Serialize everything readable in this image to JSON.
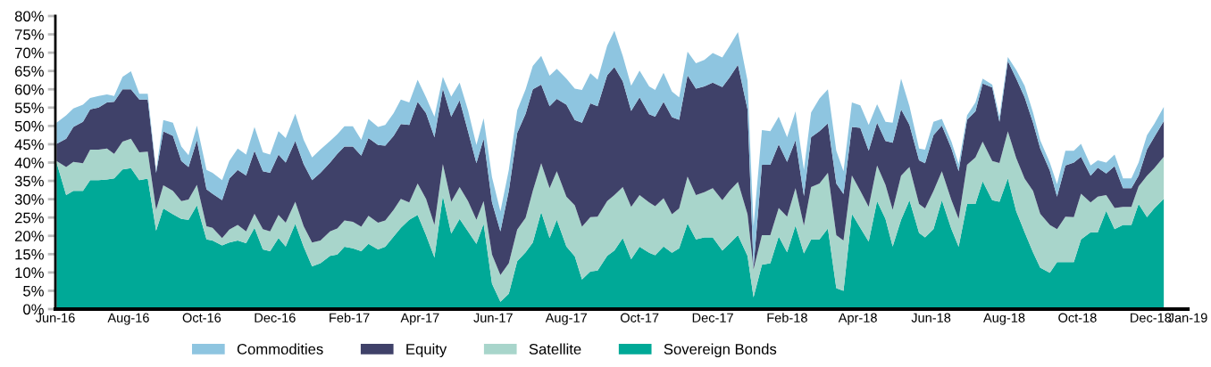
{
  "chart_data": {
    "type": "area",
    "stacked": true,
    "x": [
      "2016-06-02",
      "2016-06-10",
      "2016-06-16",
      "2016-06-24",
      "2016-06-30",
      "2016-07-07",
      "2016-07-14",
      "2016-07-20",
      "2016-07-27",
      "2016-08-03",
      "2016-08-10",
      "2016-08-17",
      "2016-08-24",
      "2016-08-30",
      "2016-09-07",
      "2016-09-14",
      "2016-09-20",
      "2016-09-27",
      "2016-10-05",
      "2016-10-10",
      "2016-10-18",
      "2016-10-24",
      "2016-10-31",
      "2016-11-07",
      "2016-11-14",
      "2016-11-21",
      "2016-11-27",
      "2016-12-04",
      "2016-12-10",
      "2016-12-18",
      "2016-12-25",
      "2017-01-01",
      "2017-01-08",
      "2017-01-16",
      "2017-01-22",
      "2017-01-28",
      "2017-02-04",
      "2017-02-11",
      "2017-02-17",
      "2017-02-25",
      "2017-03-03",
      "2017-03-10",
      "2017-03-16",
      "2017-03-23",
      "2017-03-30",
      "2017-04-06",
      "2017-04-13",
      "2017-04-20",
      "2017-04-27",
      "2017-05-04",
      "2017-05-11",
      "2017-05-18",
      "2017-05-24",
      "2017-05-31",
      "2017-06-07",
      "2017-06-14",
      "2017-06-21",
      "2017-06-28",
      "2017-07-04",
      "2017-07-11",
      "2017-07-18",
      "2017-07-24",
      "2017-08-01",
      "2017-08-08",
      "2017-08-14",
      "2017-08-21",
      "2017-08-27",
      "2017-09-04",
      "2017-09-10",
      "2017-09-17",
      "2017-09-24",
      "2017-10-01",
      "2017-10-09",
      "2017-10-14",
      "2017-10-21",
      "2017-10-28",
      "2017-11-03",
      "2017-11-10",
      "2017-11-17",
      "2017-11-24",
      "2017-12-01",
      "2017-12-09",
      "2017-12-15",
      "2017-12-22",
      "2017-12-30",
      "2018-01-04",
      "2018-01-11",
      "2018-01-18",
      "2018-01-25",
      "2018-02-01",
      "2018-02-08",
      "2018-02-15",
      "2018-02-21",
      "2018-02-28",
      "2018-03-07",
      "2018-03-14",
      "2018-03-20",
      "2018-03-27",
      "2018-04-03",
      "2018-04-10",
      "2018-04-17",
      "2018-04-24",
      "2018-04-30",
      "2018-05-07",
      "2018-05-14",
      "2018-05-22",
      "2018-05-27",
      "2018-06-03",
      "2018-06-10",
      "2018-06-18",
      "2018-06-24",
      "2018-07-01",
      "2018-07-08",
      "2018-07-14",
      "2018-07-22",
      "2018-07-28",
      "2018-08-04",
      "2018-08-11",
      "2018-08-18",
      "2018-08-25",
      "2018-08-31",
      "2018-09-08",
      "2018-09-14",
      "2018-09-21",
      "2018-09-28",
      "2018-10-04",
      "2018-10-12",
      "2018-10-18",
      "2018-10-25",
      "2018-11-01",
      "2018-11-08",
      "2018-11-15",
      "2018-11-21",
      "2018-11-28",
      "2018-12-04",
      "2018-12-12"
    ],
    "series": [
      {
        "name": "Sovereign Bonds",
        "color": "#00a997",
        "values": [
          40.0,
          31.1,
          32.3,
          32.3,
          35.2,
          35.2,
          35.4,
          35.7,
          38.1,
          38.5,
          35.2,
          35.6,
          21.4,
          27.5,
          25.9,
          24.6,
          24.4,
          28.3,
          19.0,
          18.7,
          17.4,
          18.2,
          18.7,
          18.0,
          22.2,
          16.3,
          15.8,
          19.4,
          17.1,
          23.3,
          17.0,
          11.7,
          12.5,
          14.5,
          14.9,
          17.0,
          16.6,
          15.8,
          17.8,
          16.3,
          17.0,
          19.8,
          22.2,
          24.4,
          25.7,
          20.2,
          14.1,
          30.9,
          20.6,
          24.6,
          21.2,
          17.8,
          23.3,
          6.9,
          2.0,
          4.2,
          13.1,
          15.5,
          18.2,
          26.5,
          19.4,
          24.4,
          17.1,
          14.4,
          8.1,
          10.3,
          10.5,
          14.5,
          16.0,
          19.4,
          13.6,
          17.0,
          15.4,
          14.7,
          17.1,
          15.4,
          16.6,
          23.4,
          19.0,
          19.6,
          19.6,
          16.0,
          17.9,
          20.2,
          14.5,
          3.2,
          12.1,
          12.5,
          19.8,
          15.5,
          22.8,
          15.2,
          19.0,
          19.0,
          22.0,
          5.7,
          5.0,
          26.0,
          22.2,
          18.4,
          29.5,
          24.6,
          17.1,
          24.4,
          29.7,
          20.8,
          19.6,
          21.8,
          29.7,
          21.8,
          17.0,
          28.7,
          28.7,
          34.9,
          29.7,
          29.3,
          35.7,
          26.7,
          21.0,
          15.5,
          11.3,
          9.9,
          12.8,
          12.8,
          12.8,
          19.0,
          21.0,
          21.0,
          26.8,
          21.8,
          23.0,
          23.0,
          28.7,
          25.1,
          27.5,
          30.1
        ]
      },
      {
        "name": "Satellite",
        "color": "#a8d5cb",
        "values": [
          0.4,
          7.7,
          7.9,
          7.5,
          8.3,
          8.3,
          8.4,
          6.7,
          7.6,
          8.0,
          7.6,
          7.4,
          5.7,
          6.3,
          6.4,
          4.9,
          5.5,
          5.6,
          3.6,
          3.5,
          2.0,
          3.5,
          4.3,
          3.2,
          3.8,
          5.5,
          5.4,
          6.3,
          6.5,
          6.0,
          5.6,
          6.5,
          6.2,
          6.7,
          7.1,
          7.2,
          7.2,
          6.7,
          7.7,
          7.3,
          7.2,
          7.3,
          7.9,
          4.7,
          8.6,
          9.9,
          8.9,
          8.7,
          8.7,
          8.7,
          8.3,
          6.6,
          6.2,
          8.0,
          7.3,
          8.3,
          8.6,
          9.4,
          14.1,
          13.3,
          13.6,
          13.2,
          13.6,
          13.9,
          14.4,
          14.8,
          14.7,
          15.0,
          15.1,
          13.9,
          14.3,
          14.1,
          13.7,
          13.4,
          13.2,
          10.5,
          10.9,
          12.8,
          12.1,
          12.3,
          13.4,
          13.7,
          14.4,
          14.5,
          11.4,
          7.7,
          8.1,
          7.7,
          7.8,
          9.7,
          10.2,
          7.6,
          14.3,
          15.3,
          15.2,
          14.5,
          13.7,
          10.5,
          10.1,
          9.5,
          9.7,
          9.3,
          10.0,
          12.0,
          9.1,
          7.9,
          7.9,
          10.4,
          7.9,
          7.9,
          7.6,
          10.7,
          12.7,
          10.8,
          10.7,
          10.6,
          12.8,
          14.5,
          14.6,
          16.8,
          14.7,
          13.1,
          9.0,
          12.4,
          12.3,
          12.5,
          8.1,
          9.7,
          4.3,
          5.8,
          4.9,
          4.9,
          4.8,
          11.3,
          10.9,
          11.5
        ]
      },
      {
        "name": "Equity",
        "color": "#3f4169",
        "values": [
          4.7,
          7.7,
          9.5,
          11.3,
          11.0,
          11.5,
          12.6,
          14.2,
          14.3,
          13.5,
          14.4,
          14.2,
          10.1,
          14.7,
          15.0,
          10.9,
          8.9,
          12.2,
          10.1,
          9.3,
          10.3,
          13.9,
          15.0,
          15.3,
          17.2,
          15.8,
          16.0,
          16.5,
          16.4,
          16.6,
          17.0,
          17.0,
          18.5,
          18.8,
          20.4,
          20.2,
          20.6,
          19.4,
          21.2,
          21.2,
          20.4,
          20.2,
          20.4,
          21.2,
          22.3,
          23.4,
          23.9,
          20.6,
          23.2,
          23.7,
          19.0,
          15.4,
          17.0,
          14.2,
          11.9,
          19.8,
          26.4,
          28.4,
          27.7,
          21.5,
          22.4,
          19.8,
          25.1,
          23.3,
          28.4,
          31.1,
          30.2,
          34.3,
          35.0,
          28.9,
          26.2,
          26.7,
          24.1,
          24.4,
          26.3,
          26.5,
          24.2,
          27.6,
          29.1,
          28.9,
          28.8,
          30.9,
          30.9,
          32.0,
          28.6,
          0.4,
          19.2,
          19.2,
          17.4,
          15.0,
          13.1,
          8.1,
          13.6,
          14.3,
          13.5,
          14.1,
          12.7,
          13.2,
          17.2,
          15.3,
          11.7,
          12.0,
          18.3,
          18.1,
          11.5,
          11.9,
          12.3,
          15.3,
          12.5,
          14.1,
          13.0,
          12.3,
          12.6,
          15.9,
          20.1,
          11.2,
          19.2,
          21.7,
          22.2,
          18.6,
          17.8,
          14.8,
          8.9,
          14.0,
          14.9,
          10.1,
          7.3,
          7.9,
          5.9,
          11.4,
          5.1,
          5.1,
          2.9,
          7.2,
          8.5,
          9.7
        ]
      },
      {
        "name": "Commodities",
        "color": "#8ec5e0",
        "values": [
          5.8,
          6.4,
          5.1,
          4.7,
          3.1,
          3.2,
          2.2,
          1.6,
          3.4,
          4.9,
          1.6,
          1.6,
          0.6,
          3.1,
          3.6,
          4.0,
          3.2,
          4.0,
          5.3,
          5.7,
          5.5,
          4.8,
          5.8,
          5.7,
          6.5,
          5.2,
          5.0,
          6.4,
          6.7,
          7.4,
          6.6,
          6.2,
          6.4,
          5.9,
          5.3,
          5.5,
          5.5,
          4.3,
          5.2,
          4.9,
          5.7,
          6.2,
          6.7,
          6.1,
          6.0,
          4.3,
          5.6,
          3.2,
          5.5,
          4.8,
          5.8,
          5.0,
          5.6,
          6.9,
          5.5,
          5.7,
          6.2,
          6.7,
          6.4,
          7.8,
          8.3,
          8.2,
          7.1,
          8.6,
          8.9,
          8.2,
          7.2,
          8.1,
          9.9,
          6.9,
          6.9,
          7.3,
          7.6,
          7.3,
          7.9,
          7.0,
          6.1,
          6.5,
          6.9,
          7.2,
          8.1,
          8.1,
          8.6,
          8.9,
          7.9,
          11.3,
          9.5,
          9.2,
          7.5,
          6.7,
          7.9,
          7.1,
          6.8,
          8.9,
          9.3,
          8.9,
          6.2,
          6.7,
          6.1,
          7.1,
          5.0,
          5.2,
          5.5,
          8.4,
          5.1,
          3.2,
          3.7,
          3.6,
          1.8,
          1.9,
          2.0,
          1.2,
          2.4,
          1.3,
          0.8,
          1.4,
          1.1,
          2.4,
          3.2,
          2.8,
          2.3,
          2.2,
          3.4,
          4.0,
          3.2,
          3.5,
          2.8,
          2.0,
          3.0,
          3.2,
          2.7,
          2.7,
          3.6,
          3.9,
          3.6,
          3.9
        ]
      }
    ],
    "xlim": [
      "2016-06-01",
      "2019-01-01"
    ],
    "xticks": [
      {
        "value": "2016-06-01",
        "label": "Jun-16"
      },
      {
        "value": "2016-08-01",
        "label": "Aug-16"
      },
      {
        "value": "2016-10-01",
        "label": "Oct-16"
      },
      {
        "value": "2016-12-01",
        "label": "Dec-16"
      },
      {
        "value": "2017-02-01",
        "label": "Feb-17"
      },
      {
        "value": "2017-04-01",
        "label": "Apr-17"
      },
      {
        "value": "2017-06-01",
        "label": "Jun-17"
      },
      {
        "value": "2017-08-01",
        "label": "Aug-17"
      },
      {
        "value": "2017-10-01",
        "label": "Oct-17"
      },
      {
        "value": "2017-12-01",
        "label": "Dec-17"
      },
      {
        "value": "2018-02-01",
        "label": "Feb-18"
      },
      {
        "value": "2018-04-01",
        "label": "Apr-18"
      },
      {
        "value": "2018-06-01",
        "label": "Jun-18"
      },
      {
        "value": "2018-08-01",
        "label": "Aug-18"
      },
      {
        "value": "2018-10-01",
        "label": "Oct-18"
      },
      {
        "value": "2018-12-01",
        "label": "Dec-18"
      },
      {
        "value": "2019-01-01",
        "label": "Jan-19"
      }
    ],
    "ylim": [
      0,
      80
    ],
    "yticks": [
      {
        "value": 0,
        "label": "0%"
      },
      {
        "value": 5,
        "label": "5%"
      },
      {
        "value": 10,
        "label": "10%"
      },
      {
        "value": 15,
        "label": "15%"
      },
      {
        "value": 20,
        "label": "20%"
      },
      {
        "value": 25,
        "label": "25%"
      },
      {
        "value": 30,
        "label": "30%"
      },
      {
        "value": 35,
        "label": "35%"
      },
      {
        "value": 40,
        "label": "40%"
      },
      {
        "value": 45,
        "label": "45%"
      },
      {
        "value": 50,
        "label": "50%"
      },
      {
        "value": 55,
        "label": "55%"
      },
      {
        "value": 60,
        "label": "60%"
      },
      {
        "value": 65,
        "label": "65%"
      },
      {
        "value": 70,
        "label": "70%"
      },
      {
        "value": 75,
        "label": "75%"
      },
      {
        "value": 80,
        "label": "80%"
      }
    ],
    "legend": "bottom"
  }
}
